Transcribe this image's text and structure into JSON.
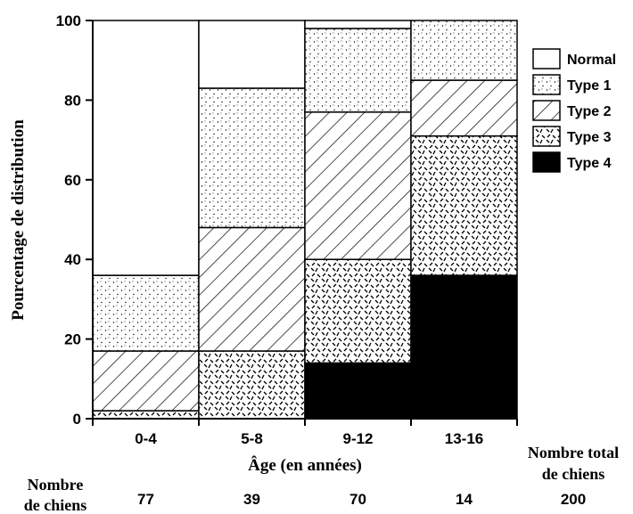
{
  "chart_data": {
    "type": "bar",
    "stacked": true,
    "categories": [
      "0-4",
      "5-8",
      "9-12",
      "13-16"
    ],
    "series": [
      {
        "name": "Type 4",
        "values": [
          0,
          0,
          14,
          36
        ],
        "pattern": "solid"
      },
      {
        "name": "Type 3",
        "values": [
          2,
          17,
          26,
          35
        ],
        "pattern": "dashes"
      },
      {
        "name": "Type 2",
        "values": [
          15,
          31,
          37,
          14
        ],
        "pattern": "hatch"
      },
      {
        "name": "Type 1",
        "values": [
          19,
          35,
          21,
          15
        ],
        "pattern": "dots"
      },
      {
        "name": "Normal",
        "values": [
          64,
          17,
          2,
          0
        ],
        "pattern": "none"
      }
    ],
    "xlabel": "Âge (en années)",
    "ylabel": "Pourcentage de distribution",
    "ylim": [
      0,
      100
    ],
    "yticks": [
      0,
      20,
      40,
      60,
      80,
      100
    ],
    "grid": false,
    "legend": {
      "position": "right",
      "entries": [
        "Normal",
        "Type 1",
        "Type 2",
        "Type 3",
        "Type 4"
      ]
    },
    "counts": {
      "row_label_line1": "Nombre",
      "row_label_line2": "de chiens",
      "values": [
        "77",
        "39",
        "70",
        "14"
      ],
      "total_label_line1": "Nombre total",
      "total_label_line2": "de chiens",
      "total_value": "200"
    }
  }
}
